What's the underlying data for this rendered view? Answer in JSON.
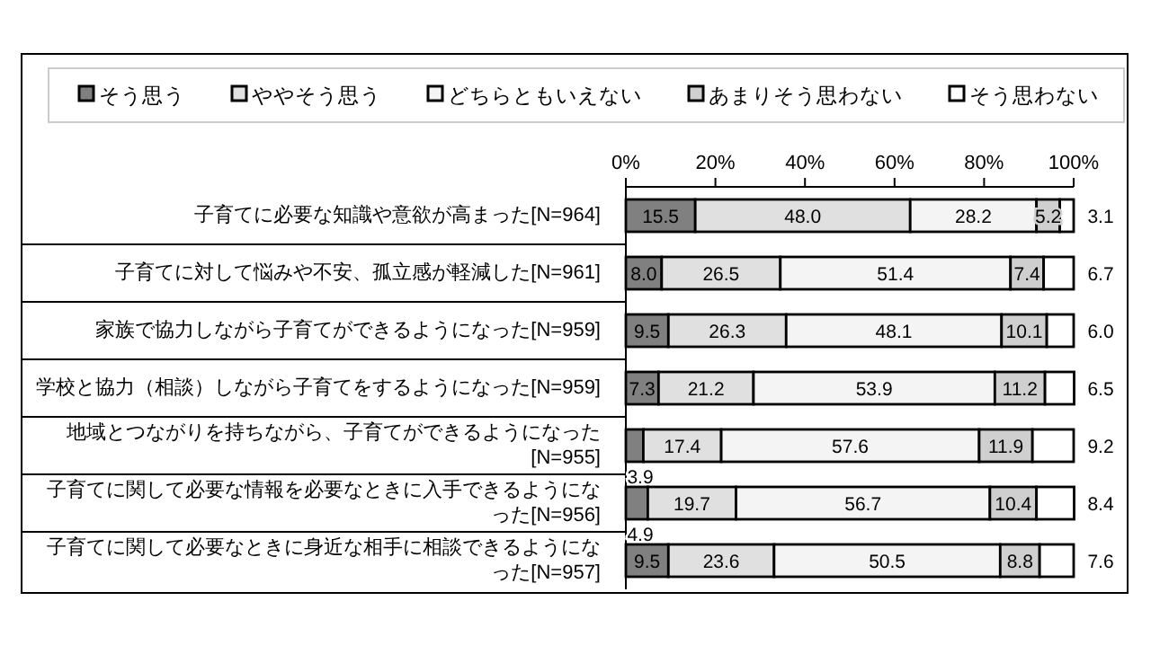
{
  "chart_data": {
    "type": "bar",
    "orientation": "horizontal",
    "stacked": true,
    "legend": "top",
    "grid": false,
    "categories": [
      "子育てに必要な知識や意欲が高まった[N=964]",
      "子育てに対して悩みや不安、孤立感が軽減した[N=961]",
      "家族で協力しながら子育てができるようになった[N=959]",
      "学校と協力（相談）しながら子育てをするようになった[N=959]",
      "地域とつながりを持ちながら、子育てができるようになった[N=955]",
      "子育てに関して必要な情報を必要なときに入手できるようになった[N=956]",
      "子育てに関して必要なときに身近な相手に相談できるようになった[N=957]"
    ],
    "xlim": [
      0,
      100
    ],
    "xticks": [
      {
        "value": 0,
        "label": "0%"
      },
      {
        "value": 20,
        "label": "20%"
      },
      {
        "value": 40,
        "label": "40%"
      },
      {
        "value": 60,
        "label": "60%"
      },
      {
        "value": 80,
        "label": "80%"
      },
      {
        "value": 100,
        "label": "100%"
      }
    ],
    "series": [
      {
        "name": "そう思う",
        "color": "#808080",
        "values": [
          15.5,
          8.0,
          9.5,
          7.3,
          3.9,
          4.9,
          9.5
        ],
        "value_labels": [
          "15.5",
          "8.0",
          "9.5",
          "7.3",
          "3.9",
          "4.9",
          "9.5"
        ]
      },
      {
        "name": "ややそう思う",
        "color": "#e0e0e0",
        "values": [
          48.0,
          26.5,
          26.3,
          21.2,
          17.4,
          19.7,
          23.6
        ],
        "value_labels": [
          "48.0",
          "26.5",
          "26.3",
          "21.2",
          "17.4",
          "19.7",
          "23.6"
        ]
      },
      {
        "name": "どちらともいえない",
        "color": "#f4f4f4",
        "values": [
          28.2,
          51.4,
          48.1,
          53.9,
          57.6,
          56.7,
          50.5
        ],
        "value_labels": [
          "28.2",
          "51.4",
          "48.1",
          "53.9",
          "57.6",
          "56.7",
          "50.5"
        ]
      },
      {
        "name": "あまりそう思わない",
        "color": "#cfcfcf",
        "values": [
          5.2,
          7.4,
          10.1,
          11.2,
          11.9,
          10.4,
          8.8
        ],
        "value_labels": [
          "5.2",
          "7.4",
          "10.1",
          "11.2",
          "11.9",
          "10.4",
          "8.8"
        ]
      },
      {
        "name": "そう思わない",
        "color": "#ffffff",
        "values": [
          3.1,
          6.7,
          6.0,
          6.5,
          9.2,
          8.4,
          7.6
        ],
        "value_labels": [
          "3.1",
          "6.7",
          "6.0",
          "6.5",
          "9.2",
          "8.4",
          "7.6"
        ]
      }
    ]
  }
}
